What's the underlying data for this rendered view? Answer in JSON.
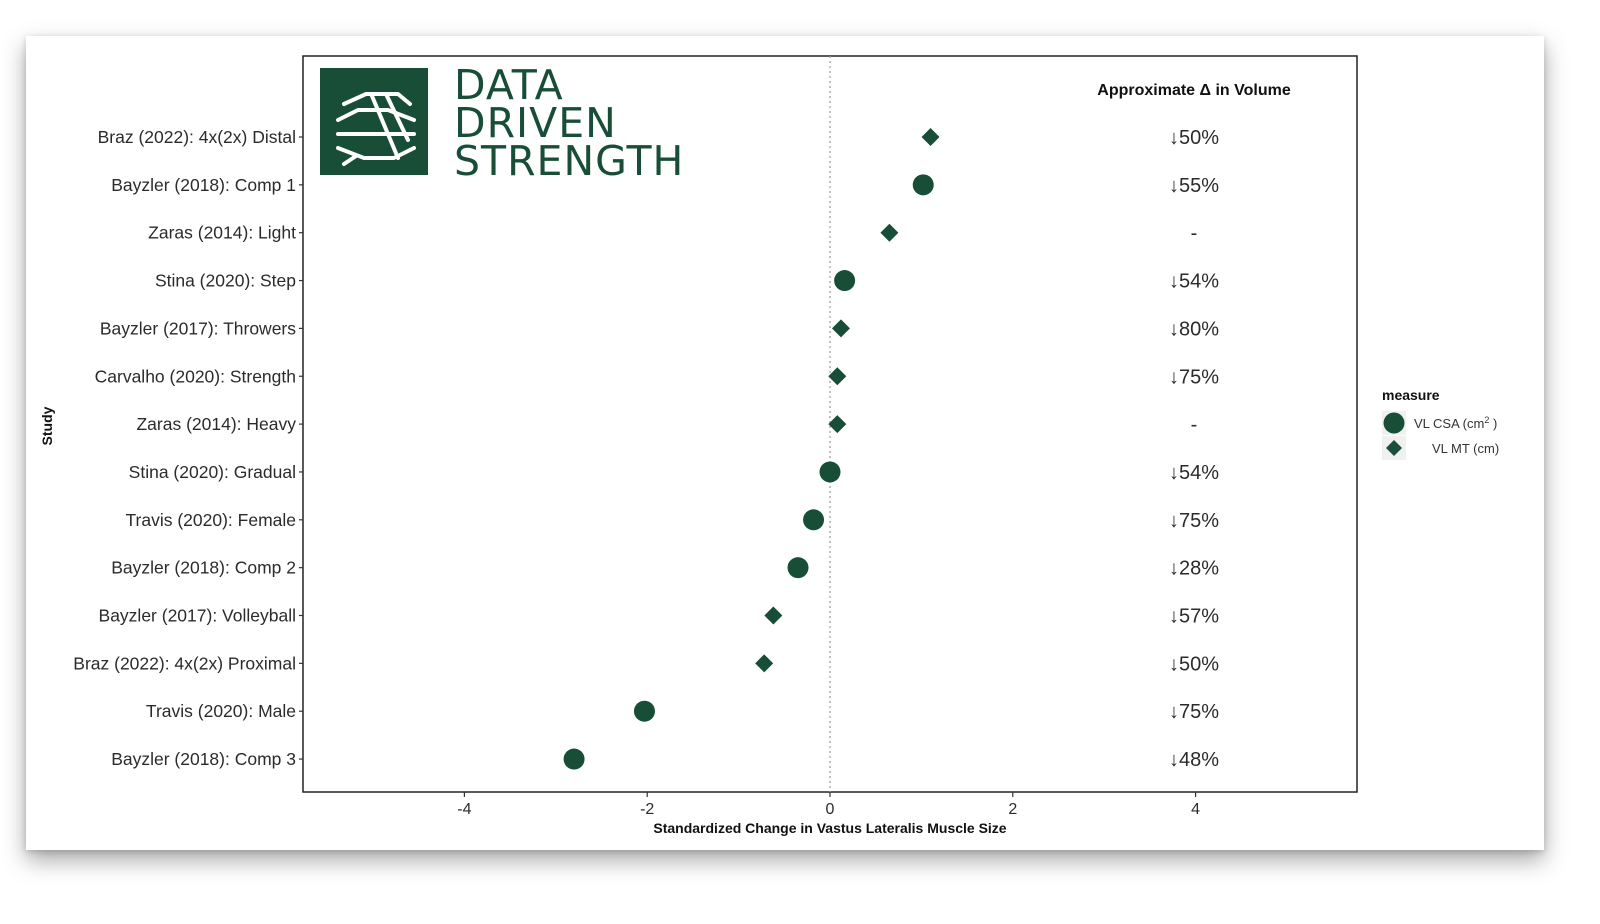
{
  "brand": {
    "logo_lines": [
      "DATA",
      "DRIVEN",
      "STRENGTH"
    ],
    "logo_icon": "circuit-strength-logo-icon",
    "color": "#184d38"
  },
  "accent_color": "#184d38",
  "chart_data": {
    "type": "scatter",
    "title": "",
    "xlabel": "Standardized Change in Vastus Lateralis Muscle Size",
    "ylabel": "Study",
    "xlim": [
      -5.8,
      5.8
    ],
    "xticks": [
      -4,
      -2,
      0,
      2,
      4
    ],
    "reference_line": 0,
    "grid": false,
    "legend": {
      "title": "measure",
      "placement": "right",
      "entries": [
        {
          "label": "VL CSA (cm",
          "sup": "2",
          "suffix": " )",
          "shape": "circle"
        },
        {
          "label": "VL MT (cm)",
          "shape": "diamond"
        }
      ]
    },
    "annotation_header": "Approximate Δ in Volume",
    "studies": [
      {
        "name": "Braz (2022): 4x(2x) Distal",
        "value": 1.1,
        "measure": "VL MT (cm)",
        "volume": "↓50%"
      },
      {
        "name": "Bayzler (2018): Comp 1",
        "value": 1.02,
        "measure": "VL CSA (cm2)",
        "volume": "↓55%"
      },
      {
        "name": "Zaras (2014): Light",
        "value": 0.65,
        "measure": "VL MT (cm)",
        "volume": "-"
      },
      {
        "name": "Stina (2020): Step",
        "value": 0.16,
        "measure": "VL CSA (cm2)",
        "volume": "↓54%"
      },
      {
        "name": "Bayzler (2017): Throwers",
        "value": 0.12,
        "measure": "VL MT (cm)",
        "volume": "↓80%"
      },
      {
        "name": "Carvalho (2020): Strength",
        "value": 0.08,
        "measure": "VL MT (cm)",
        "volume": "↓75%"
      },
      {
        "name": "Zaras (2014): Heavy",
        "value": 0.08,
        "measure": "VL MT (cm)",
        "volume": "-"
      },
      {
        "name": "Stina (2020): Gradual",
        "value": 0.0,
        "measure": "VL CSA (cm2)",
        "volume": "↓54%"
      },
      {
        "name": "Travis (2020): Female",
        "value": -0.18,
        "measure": "VL CSA (cm2)",
        "volume": "↓75%"
      },
      {
        "name": "Bayzler (2018): Comp 2",
        "value": -0.35,
        "measure": "VL CSA (cm2)",
        "volume": "↓28%"
      },
      {
        "name": "Bayzler (2017): Volleyball",
        "value": -0.62,
        "measure": "VL MT (cm)",
        "volume": "↓57%"
      },
      {
        "name": "Braz (2022): 4x(2x) Proximal",
        "value": -0.72,
        "measure": "VL MT (cm)",
        "volume": "↓50%"
      },
      {
        "name": "Travis (2020): Male",
        "value": -2.03,
        "measure": "VL CSA (cm2)",
        "volume": "↓75%"
      },
      {
        "name": "Bayzler (2018): Comp 3",
        "value": -2.8,
        "measure": "VL CSA (cm2)",
        "volume": "↓48%"
      }
    ]
  }
}
